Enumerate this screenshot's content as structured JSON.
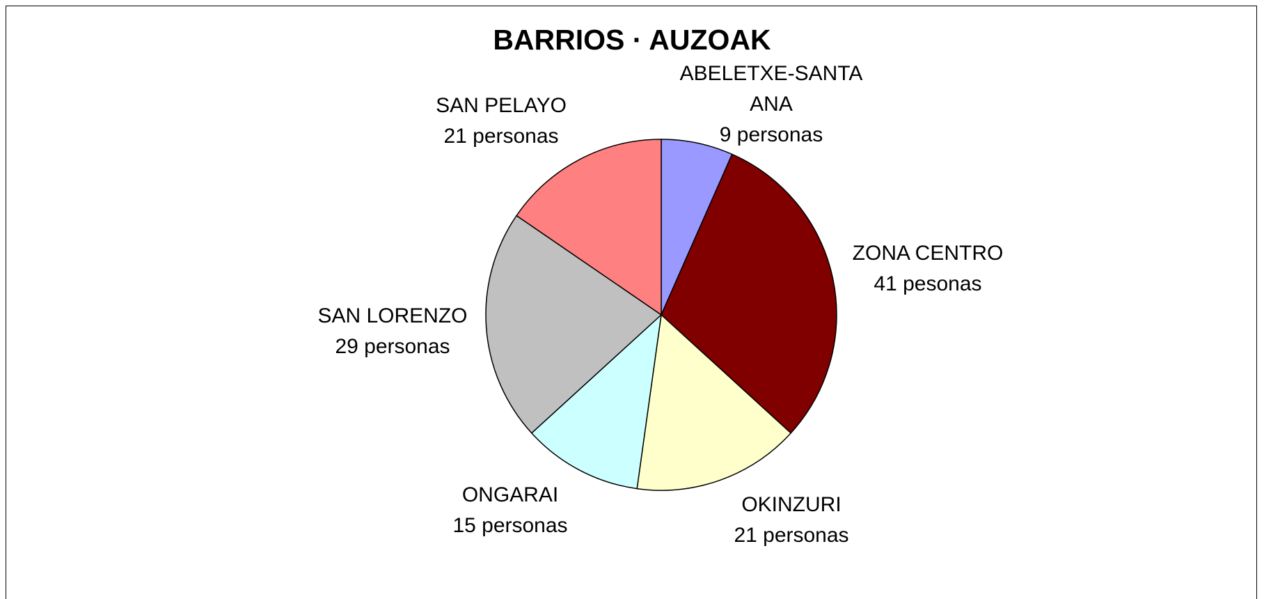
{
  "chart_data": {
    "type": "pie",
    "title": "BARRIOS · AUZOAK",
    "categories": [
      "ABELETXE-SANTA ANA",
      "ZONA CENTRO",
      "OKINZURI",
      "ONGARAI",
      "SAN LORENZO",
      "SAN PELAYO"
    ],
    "values": [
      9,
      41,
      21,
      15,
      29,
      21
    ],
    "value_labels": [
      "9 personas",
      "41 pesonas",
      "21 personas",
      "15 personas",
      "29 personas",
      "21 personas"
    ],
    "colors": [
      "#9999ff",
      "#800000",
      "#ffffcc",
      "#ccffff",
      "#c0c0c0",
      "#ff8080"
    ]
  }
}
